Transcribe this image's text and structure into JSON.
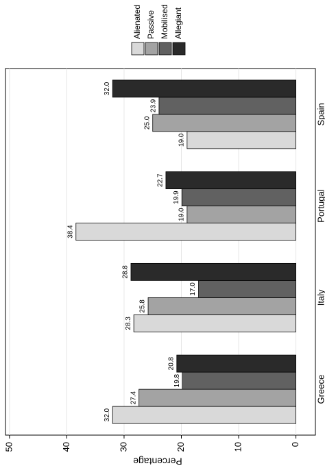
{
  "chart_data": {
    "type": "bar",
    "categories": [
      "Greece",
      "Italy",
      "Portugal",
      "Spain"
    ],
    "series": [
      {
        "name": "Alienated",
        "color": "#d9d9d9",
        "values": [
          32.0,
          28.3,
          38.4,
          19.0
        ],
        "value_labels": [
          "32.0",
          "28.3",
          "38.4",
          "19.0"
        ]
      },
      {
        "name": "Passive",
        "color": "#a3a3a3",
        "values": [
          27.4,
          25.8,
          19.0,
          25.0
        ],
        "value_labels": [
          "27.4",
          "25.8",
          "19.0",
          "25.0"
        ]
      },
      {
        "name": "Mobilised",
        "color": "#616161",
        "values": [
          19.8,
          17.0,
          19.9,
          23.9
        ],
        "value_labels": [
          "19.8",
          "17.0",
          "19.9",
          "23.9"
        ]
      },
      {
        "name": "Allegiant",
        "color": "#2a2a2a",
        "values": [
          20.8,
          28.8,
          22.7,
          32.0
        ],
        "value_labels": [
          "20.8",
          "28.8",
          "22.7",
          "32.0"
        ]
      }
    ],
    "ylabel": "Percentage",
    "ylim": [
      -3.4,
      50.7
    ],
    "yticks": [
      0,
      10,
      20,
      30,
      40,
      50
    ],
    "grid": true
  }
}
